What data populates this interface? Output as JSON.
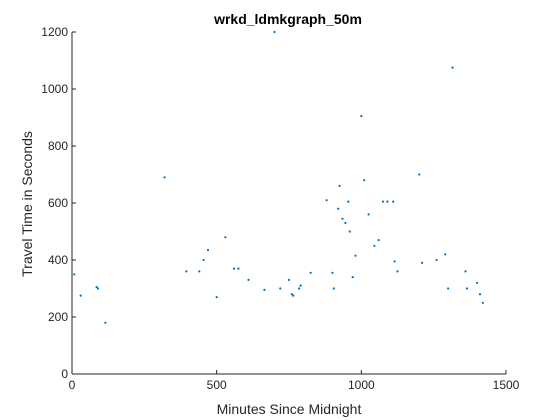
{
  "chart_data": {
    "type": "scatter",
    "title": "wrkd_ldmkgraph_50m",
    "xlabel": "Minutes Since Midnight",
    "ylabel": "Travel Time in Seconds",
    "xlim": [
      0,
      1500
    ],
    "ylim": [
      0,
      1200
    ],
    "xticks": [
      0,
      500,
      1000,
      1500
    ],
    "yticks": [
      0,
      200,
      400,
      600,
      800,
      1000,
      1200
    ],
    "grid": false,
    "legend": "none",
    "marker_color": "#0072BD",
    "series": [
      {
        "points": [
          [
            8,
            350
          ],
          [
            30,
            275
          ],
          [
            85,
            305
          ],
          [
            90,
            300
          ],
          [
            115,
            180
          ],
          [
            320,
            690
          ],
          [
            395,
            360
          ],
          [
            440,
            360
          ],
          [
            455,
            400
          ],
          [
            470,
            435
          ],
          [
            500,
            270
          ],
          [
            530,
            480
          ],
          [
            560,
            370
          ],
          [
            575,
            370
          ],
          [
            610,
            330
          ],
          [
            700,
            1200
          ],
          [
            665,
            295
          ],
          [
            720,
            300
          ],
          [
            750,
            330
          ],
          [
            760,
            280
          ],
          [
            765,
            275
          ],
          [
            785,
            300
          ],
          [
            790,
            310
          ],
          [
            825,
            355
          ],
          [
            880,
            610
          ],
          [
            900,
            355
          ],
          [
            905,
            300
          ],
          [
            920,
            580
          ],
          [
            925,
            660
          ],
          [
            935,
            545
          ],
          [
            945,
            530
          ],
          [
            955,
            605
          ],
          [
            960,
            500
          ],
          [
            970,
            340
          ],
          [
            980,
            415
          ],
          [
            1000,
            905
          ],
          [
            1010,
            680
          ],
          [
            1025,
            560
          ],
          [
            1045,
            450
          ],
          [
            1060,
            470
          ],
          [
            1075,
            605
          ],
          [
            1090,
            605
          ],
          [
            1110,
            605
          ],
          [
            1115,
            395
          ],
          [
            1125,
            360
          ],
          [
            1200,
            700
          ],
          [
            1210,
            390
          ],
          [
            1260,
            400
          ],
          [
            1290,
            420
          ],
          [
            1300,
            300
          ],
          [
            1315,
            1075
          ],
          [
            1360,
            360
          ],
          [
            1365,
            300
          ],
          [
            1400,
            320
          ],
          [
            1410,
            280
          ],
          [
            1420,
            250
          ]
        ]
      }
    ]
  }
}
